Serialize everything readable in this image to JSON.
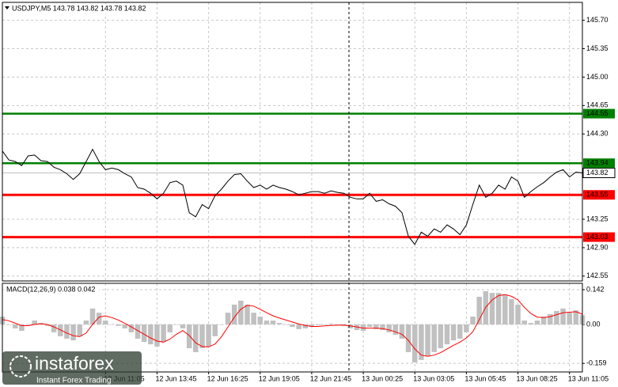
{
  "chart_data": [
    {
      "type": "line",
      "title": "USDJPY,M5 143.78 143.82 143.78 143.82",
      "color": "#000000",
      "xlim": [
        0,
        90
      ],
      "ylim": [
        142.49,
        145.92
      ],
      "yticks": [
        142.55,
        {
          "value": 142.9,
          "label": "142.90"
        },
        143.25,
        {
          "value": 144.3,
          "label": "144.30"
        },
        144.65,
        {
          "value": 145,
          "label": "145.00"
        },
        145.35,
        {
          "value": 145.7,
          "label": "145.70"
        }
      ],
      "grid": true,
      "values": [
        144.09,
        143.98,
        143.96,
        143.91,
        144.03,
        144.04,
        143.97,
        143.96,
        143.89,
        143.86,
        143.81,
        143.74,
        143.81,
        143.96,
        144.11,
        143.96,
        143.86,
        143.88,
        143.86,
        143.81,
        143.77,
        143.64,
        143.62,
        143.57,
        143.5,
        143.57,
        143.7,
        143.72,
        143.67,
        143.33,
        143.28,
        143.43,
        143.38,
        143.54,
        143.62,
        143.72,
        143.8,
        143.81,
        143.72,
        143.64,
        143.67,
        143.62,
        143.67,
        143.64,
        143.62,
        143.59,
        143.55,
        143.57,
        143.59,
        143.59,
        143.57,
        143.6,
        143.58,
        143.57,
        143.52,
        143.5,
        143.5,
        143.57,
        143.47,
        143.49,
        143.44,
        143.41,
        143.33,
        143.04,
        142.94,
        143.09,
        143.04,
        143.13,
        143.09,
        143.18,
        143.13,
        143.06,
        143.18,
        143.43,
        143.67,
        143.52,
        143.57,
        143.67,
        143.62,
        143.77,
        143.72,
        143.52,
        143.59,
        143.65,
        143.7,
        143.77,
        143.83,
        143.86,
        143.77,
        143.83,
        143.82
      ],
      "last": {
        "value": 143.82,
        "color": "#c0c0c0"
      },
      "levels": [
        {
          "value": 144.55,
          "color": "#008000"
        },
        {
          "value": 143.94,
          "color": "#008000"
        },
        {
          "value": 143.55,
          "color": "#ff0000"
        },
        {
          "value": 143.03,
          "color": "#ff0000"
        }
      ]
    },
    {
      "type": "bar",
      "title": "MACD(12,26,9) 0.038 0.042",
      "color": "#c0c0c0",
      "signal_color": "#ff0000",
      "xlim": [
        0,
        90
      ],
      "ylim": [
        -0.194,
        0.168
      ],
      "yticks": [
        -0.159,
        {
          "value": 0,
          "label": "0.00"
        },
        0.142
      ],
      "xticks": [
        {
          "value": 16,
          "label": "12 Jun 11:05"
        },
        {
          "value": 24,
          "label": "12 Jun 13:45"
        },
        {
          "value": 32,
          "label": "12 Jun 16:25"
        },
        {
          "value": 40,
          "label": "12 Jun 19:05"
        },
        {
          "value": 48,
          "label": "12 Jun 21:45"
        },
        {
          "value": 56,
          "label": "13 Jun 00:25"
        },
        {
          "value": 64,
          "label": "13 Jun 03:05"
        },
        {
          "value": 72,
          "label": "13 Jun 05:45"
        },
        {
          "value": 80,
          "label": "13 Jun 08:25"
        },
        {
          "value": 88,
          "label": "13 Jun 11:05"
        }
      ],
      "grid": true,
      "values": [
        0.032,
        0,
        -0.016,
        -0.026,
        0,
        0.016,
        0.006,
        -0.006,
        -0.032,
        -0.048,
        -0.058,
        -0.065,
        -0.048,
        0.016,
        0.065,
        0.048,
        0.016,
        0,
        -0.006,
        -0.016,
        -0.032,
        -0.058,
        -0.071,
        -0.081,
        -0.09,
        -0.071,
        -0.032,
        0,
        -0.016,
        -0.097,
        -0.113,
        -0.097,
        -0.09,
        -0.048,
        0,
        0.048,
        0.081,
        0.097,
        0.081,
        0.048,
        0.032,
        0.016,
        0.016,
        0.006,
        0,
        -0.01,
        -0.019,
        -0.016,
        -0.01,
        -0.003,
        0,
        0.003,
        0,
        -0.006,
        -0.016,
        -0.023,
        -0.026,
        -0.01,
        -0.019,
        -0.023,
        -0.032,
        -0.042,
        -0.058,
        -0.113,
        -0.155,
        -0.145,
        -0.129,
        -0.113,
        -0.097,
        -0.081,
        -0.065,
        -0.058,
        -0.032,
        0.032,
        0.113,
        0.136,
        0.129,
        0.129,
        0.123,
        0.103,
        0.081,
        0.016,
        0.006,
        0.016,
        0.032,
        0.042,
        0.055,
        0.065,
        0.048,
        0.058,
        0.038
      ],
      "signal": [
        0.02,
        0.015,
        0.005,
        -0.005,
        -0.005,
        0.0,
        0.003,
        0.0,
        -0.01,
        -0.022,
        -0.035,
        -0.046,
        -0.05,
        -0.035,
        0.0,
        0.03,
        0.035,
        0.028,
        0.018,
        0.005,
        -0.01,
        -0.025,
        -0.04,
        -0.055,
        -0.068,
        -0.072,
        -0.06,
        -0.04,
        -0.025,
        -0.045,
        -0.075,
        -0.09,
        -0.092,
        -0.08,
        -0.05,
        -0.01,
        0.03,
        0.062,
        0.078,
        0.075,
        0.062,
        0.048,
        0.035,
        0.026,
        0.018,
        0.01,
        0.002,
        -0.004,
        -0.008,
        -0.008,
        -0.006,
        -0.004,
        -0.003,
        -0.003,
        -0.006,
        -0.01,
        -0.015,
        -0.015,
        -0.015,
        -0.017,
        -0.022,
        -0.03,
        -0.04,
        -0.065,
        -0.1,
        -0.125,
        -0.13,
        -0.125,
        -0.115,
        -0.1,
        -0.085,
        -0.072,
        -0.055,
        -0.03,
        0.02,
        0.07,
        0.1,
        0.118,
        0.122,
        0.115,
        0.1,
        0.07,
        0.045,
        0.03,
        0.028,
        0.032,
        0.04,
        0.048,
        0.05,
        0.052,
        0.042
      ]
    }
  ],
  "watermark": {
    "brand": "instaforex",
    "tagline": "Instant Forex Trading"
  }
}
